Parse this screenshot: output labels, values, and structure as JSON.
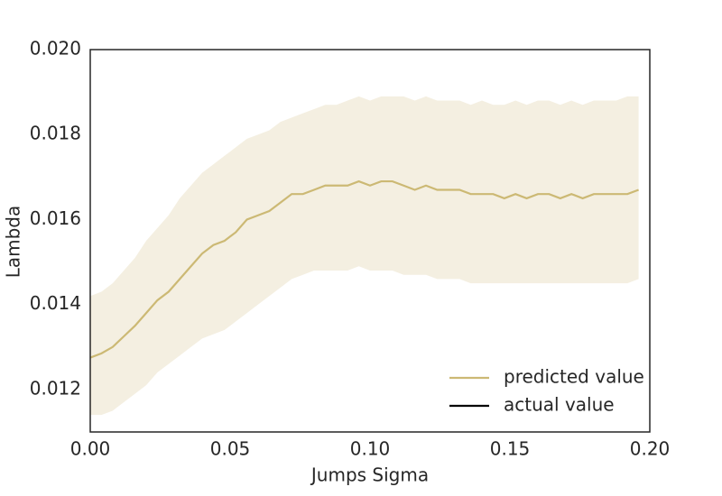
{
  "chart_data": {
    "type": "line",
    "xlabel": "Jumps Sigma",
    "ylabel": "Lambda",
    "x": [
      0,
      0.004,
      0.008,
      0.012,
      0.016,
      0.02,
      0.024,
      0.028,
      0.032,
      0.036,
      0.04,
      0.044,
      0.048,
      0.052,
      0.056,
      0.06,
      0.064,
      0.068,
      0.072,
      0.076,
      0.08,
      0.084,
      0.088,
      0.092,
      0.096,
      0.1,
      0.104,
      0.108,
      0.112,
      0.116,
      0.12,
      0.124,
      0.128,
      0.132,
      0.136,
      0.14,
      0.144,
      0.148,
      0.152,
      0.156,
      0.16,
      0.164,
      0.168,
      0.172,
      0.176,
      0.18,
      0.184,
      0.188,
      0.192,
      0.196
    ],
    "series": [
      {
        "name": "predicted value",
        "color": "#ccb974",
        "values": [
          0.01275,
          0.01285,
          0.013,
          0.01325,
          0.0135,
          0.0138,
          0.0141,
          0.0143,
          0.0146,
          0.0149,
          0.0152,
          0.0154,
          0.0155,
          0.0157,
          0.016,
          0.0161,
          0.0162,
          0.0164,
          0.0166,
          0.0166,
          0.0167,
          0.0168,
          0.0168,
          0.0168,
          0.0169,
          0.0168,
          0.0169,
          0.0169,
          0.0168,
          0.0167,
          0.0168,
          0.0167,
          0.0167,
          0.0167,
          0.0166,
          0.0166,
          0.0166,
          0.0165,
          0.0166,
          0.0165,
          0.0166,
          0.0166,
          0.0165,
          0.0166,
          0.0165,
          0.0166,
          0.0166,
          0.0166,
          0.0166,
          0.0167
        ],
        "band": {
          "color": "#f4efe1",
          "upper": [
            0.0142,
            0.0143,
            0.0145,
            0.0148,
            0.0151,
            0.0155,
            0.0158,
            0.0161,
            0.0165,
            0.0168,
            0.0171,
            0.0173,
            0.0175,
            0.0177,
            0.0179,
            0.018,
            0.0181,
            0.0183,
            0.0184,
            0.0185,
            0.0186,
            0.0187,
            0.0187,
            0.0188,
            0.0189,
            0.0188,
            0.0189,
            0.0189,
            0.0189,
            0.0188,
            0.0189,
            0.0188,
            0.0188,
            0.0188,
            0.0187,
            0.0188,
            0.0187,
            0.0187,
            0.0188,
            0.0187,
            0.0188,
            0.0188,
            0.0187,
            0.0188,
            0.0187,
            0.0188,
            0.0188,
            0.0188,
            0.0189,
            0.0189
          ],
          "lower": [
            0.0114,
            0.0114,
            0.0115,
            0.0117,
            0.0119,
            0.0121,
            0.0124,
            0.0126,
            0.0128,
            0.013,
            0.0132,
            0.0133,
            0.0134,
            0.0136,
            0.0138,
            0.014,
            0.0142,
            0.0144,
            0.0146,
            0.0147,
            0.0148,
            0.0148,
            0.0148,
            0.0148,
            0.0149,
            0.0148,
            0.0148,
            0.0148,
            0.0147,
            0.0147,
            0.0147,
            0.0146,
            0.0146,
            0.0146,
            0.0145,
            0.0145,
            0.0145,
            0.0145,
            0.0145,
            0.0145,
            0.0145,
            0.0145,
            0.0145,
            0.0145,
            0.0145,
            0.0145,
            0.0145,
            0.0145,
            0.0145,
            0.0146
          ]
        }
      },
      {
        "name": "actual value",
        "color": "#000000",
        "values": [
          null,
          null,
          null,
          null,
          null,
          null,
          null,
          null,
          null,
          null,
          null,
          null,
          null,
          null,
          null,
          null,
          null,
          null,
          null,
          null,
          null,
          null,
          null,
          null,
          null,
          null,
          null,
          null,
          null,
          null,
          null,
          null,
          null,
          null,
          null,
          null,
          null,
          null,
          null,
          null,
          null,
          null,
          null,
          null,
          null,
          null,
          null,
          null,
          null,
          null
        ]
      }
    ],
    "xlim": [
      0,
      0.2
    ],
    "xticks": [
      {
        "value": 0,
        "label": "0.00"
      },
      0.05,
      {
        "value": 0.1,
        "label": "0.10"
      },
      0.15,
      {
        "value": 0.2,
        "label": "0.20"
      }
    ],
    "ylim": [
      0.011,
      0.02
    ],
    "yticks": [
      0.012,
      0.014,
      0.016,
      0.018,
      {
        "value": 0.02,
        "label": "0.020"
      }
    ],
    "grid": false,
    "legend": "lower right"
  }
}
